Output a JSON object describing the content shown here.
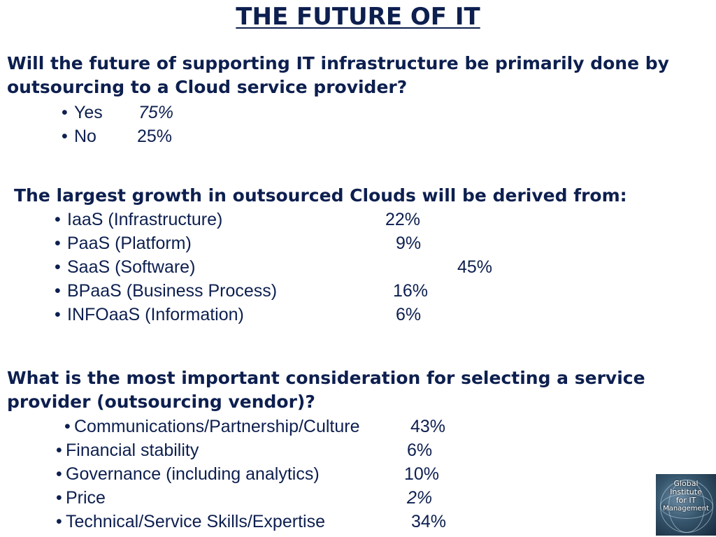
{
  "title": "THE FUTURE OF IT",
  "sections": [
    {
      "question_line1": "Will the future of supporting IT infrastructure be primarily done by",
      "question_line2": "outsourcing to a Cloud service provider?",
      "items": [
        {
          "label": "Yes",
          "value": "75%"
        },
        {
          "label": "No",
          "value": "25%"
        }
      ]
    },
    {
      "question_line1": "The largest growth in outsourced Clouds will be derived from:",
      "items": [
        {
          "label": "IaaS (Infrastructure)",
          "value": "22%"
        },
        {
          "label": "PaaS (Platform)",
          "value": "9%"
        },
        {
          "label": "SaaS (Software)",
          "value": "45%"
        },
        {
          "label": "BPaaS (Business Process)",
          "value": "16%"
        },
        {
          "label": "INFOaaS (Information)",
          "value": "6%"
        }
      ]
    },
    {
      "question_line1": "What is the most important consideration for selecting a service",
      "question_line2": "provider (outsourcing vendor)?",
      "items": [
        {
          "label": "Communications/Partnership/Culture",
          "value": "43%"
        },
        {
          "label": "Financial stability",
          "value": "6%"
        },
        {
          "label": "Governance (including analytics)",
          "value": "10%"
        },
        {
          "label": "Price",
          "value": "2%"
        },
        {
          "label": "Technical/Service Skills/Expertise",
          "value": "34%"
        }
      ]
    }
  ],
  "logo": {
    "line1": "Global",
    "line2": "Institute",
    "line3": "for IT",
    "line4": "Management"
  },
  "colors": {
    "text": "#0d1f4f",
    "background": "#ffffff"
  }
}
